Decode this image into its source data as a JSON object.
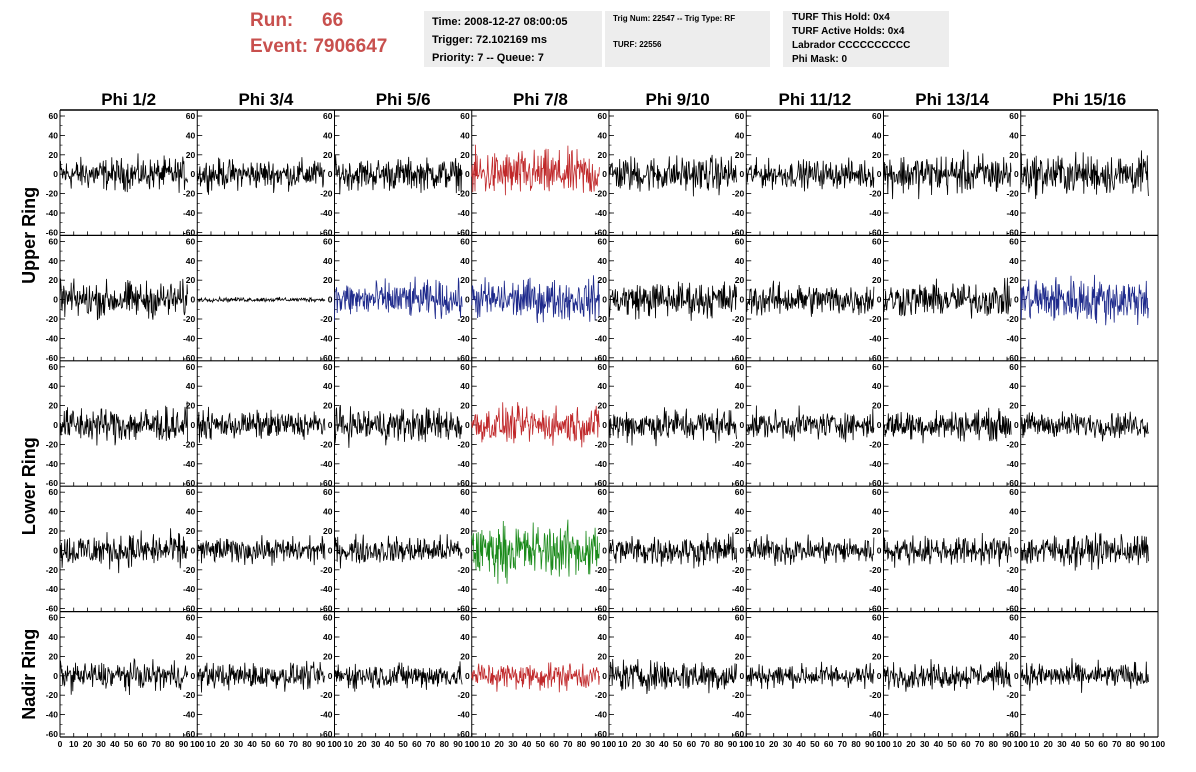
{
  "header": {
    "run_label": "Run:",
    "run_value": "66",
    "event_label": "Event:",
    "event_value": "7906647",
    "time": "Time: 2008-12-27 08:00:05",
    "trigger": "Trigger: 72.102169 ms",
    "priority": "Priority: 7 -- Queue: 7",
    "trig_num": "Trig Num: 22547 -- Trig Type: RF",
    "turf": "TURF: 22556",
    "turf_this_hold": "TURF This Hold: 0x4",
    "turf_active_holds": "TURF Active Holds: 0x4",
    "labrador": "Labrador CCCCCCCCCC",
    "phi_mask": "Phi Mask: 0"
  },
  "chart_data": {
    "type": "line",
    "columns": [
      "Phi 1/2",
      "Phi 3/4",
      "Phi 5/6",
      "Phi 7/8",
      "Phi 9/10",
      "Phi 11/12",
      "Phi 13/14",
      "Phi 15/16"
    ],
    "rows": [
      "Upper Ring",
      "Upper Ring",
      "Lower Ring",
      "Lower Ring",
      "Nadir Ring"
    ],
    "row_labels": [
      {
        "label": "Upper Ring",
        "rows": [
          0,
          1
        ]
      },
      {
        "label": "Lower Ring",
        "rows": [
          2,
          3
        ]
      },
      {
        "label": "Nadir Ring",
        "rows": [
          4
        ]
      }
    ],
    "xlim": [
      0,
      100
    ],
    "ylim": [
      -60,
      60
    ],
    "x_ticks": [
      0,
      10,
      20,
      30,
      40,
      50,
      60,
      70,
      80,
      90,
      100
    ],
    "y_ticks": [
      -60,
      -40,
      -20,
      0,
      20,
      40,
      60
    ],
    "samples_per_trace": 240,
    "trace_x_max": 93,
    "colors": {
      "default": "#000000",
      "red": "#c0282a",
      "blue": "#1e2a8c",
      "green": "#1a8a1a"
    },
    "panels": [
      [
        {
          "color": "default",
          "amp": 15
        },
        {
          "color": "default",
          "amp": 14
        },
        {
          "color": "default",
          "amp": 15
        },
        {
          "color": "red",
          "amp": 22
        },
        {
          "color": "default",
          "amp": 17
        },
        {
          "color": "default",
          "amp": 13
        },
        {
          "color": "default",
          "amp": 19
        },
        {
          "color": "default",
          "amp": 19
        }
      ],
      [
        {
          "color": "default",
          "amp": 17
        },
        {
          "color": "default",
          "amp": 2
        },
        {
          "color": "blue",
          "amp": 17
        },
        {
          "color": "blue",
          "amp": 19
        },
        {
          "color": "default",
          "amp": 17
        },
        {
          "color": "default",
          "amp": 15
        },
        {
          "color": "default",
          "amp": 16
        },
        {
          "color": "blue",
          "amp": 22
        }
      ],
      [
        {
          "color": "default",
          "amp": 17
        },
        {
          "color": "default",
          "amp": 13
        },
        {
          "color": "default",
          "amp": 16
        },
        {
          "color": "red",
          "amp": 17
        },
        {
          "color": "default",
          "amp": 16
        },
        {
          "color": "default",
          "amp": 13
        },
        {
          "color": "default",
          "amp": 14
        },
        {
          "color": "default",
          "amp": 12
        }
      ],
      [
        {
          "color": "default",
          "amp": 16
        },
        {
          "color": "default",
          "amp": 12
        },
        {
          "color": "default",
          "amp": 13
        },
        {
          "color": "green",
          "amp": 25
        },
        {
          "color": "default",
          "amp": 14
        },
        {
          "color": "default",
          "amp": 13
        },
        {
          "color": "default",
          "amp": 13
        },
        {
          "color": "default",
          "amp": 15
        }
      ],
      [
        {
          "color": "default",
          "amp": 13
        },
        {
          "color": "default",
          "amp": 12
        },
        {
          "color": "default",
          "amp": 12
        },
        {
          "color": "red",
          "amp": 13
        },
        {
          "color": "default",
          "amp": 15
        },
        {
          "color": "default",
          "amp": 11
        },
        {
          "color": "default",
          "amp": 12
        },
        {
          "color": "default",
          "amp": 12
        }
      ]
    ]
  }
}
